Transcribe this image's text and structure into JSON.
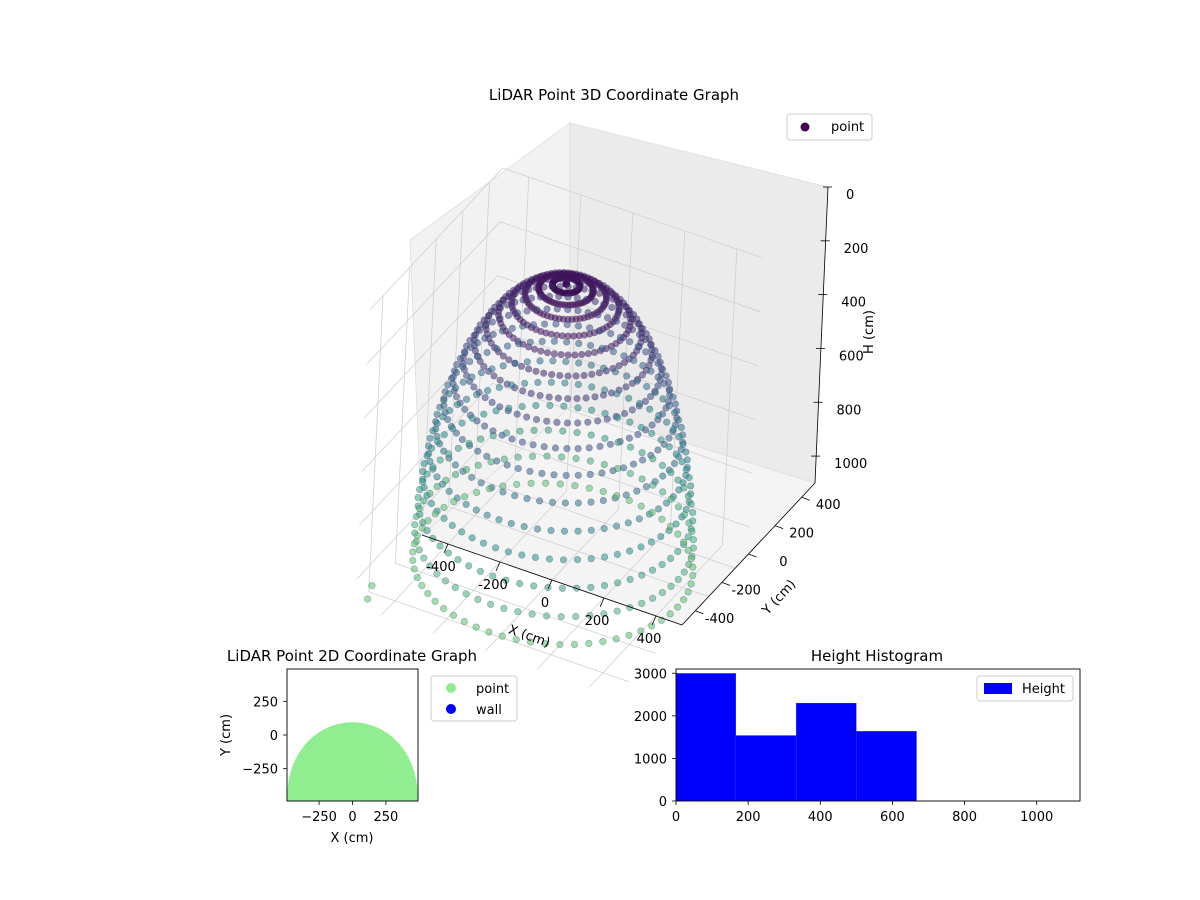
{
  "chart_data": [
    {
      "type": "scatter",
      "projection": "3d",
      "title": "LiDAR Point 3D Coordinate Graph",
      "xlabel": "X (cm)",
      "ylabel": "Y (cm)",
      "zlabel": "H (cm)",
      "xticks": [
        -400,
        -200,
        0,
        200,
        400
      ],
      "yticks": [
        -400,
        -200,
        0,
        200,
        400
      ],
      "zticks": [
        0,
        200,
        400,
        600,
        800,
        1000
      ],
      "xlim": [
        -500,
        500
      ],
      "ylim": [
        -500,
        500
      ],
      "zlim": [
        0,
        1100
      ],
      "z_inverted": true,
      "legend": [
        "point"
      ],
      "legend_position": "top-right",
      "colormap": "viridis",
      "series": [
        {
          "name": "point",
          "shape": "dome",
          "dome_radius": 480,
          "dome_height_range": [
            0,
            1040
          ],
          "height_band": [
            560,
            700
          ],
          "stray_points": [
            {
              "x": -480,
              "y": -420,
              "h": 1060
            },
            {
              "x": -470,
              "y": -470,
              "h": 1080
            }
          ]
        }
      ]
    },
    {
      "type": "scatter",
      "title": "LiDAR Point 2D Coordinate Graph",
      "xlabel": "X (cm)",
      "ylabel": "Y (cm)",
      "xticks": [
        -250,
        0,
        250
      ],
      "yticks": [
        -250,
        0,
        250
      ],
      "xlim": [
        -490,
        490
      ],
      "ylim": [
        -490,
        490
      ],
      "legend": [
        "point",
        "wall"
      ],
      "legend_position": "outside-right",
      "series": [
        {
          "name": "point",
          "color": "#90ee90",
          "region": "semicircle",
          "radius": 490,
          "top_y": 95
        },
        {
          "name": "wall",
          "color": "#0000ff"
        }
      ]
    },
    {
      "type": "bar",
      "subtype": "histogram",
      "title": "Height Histogram",
      "xticks": [
        0,
        200,
        400,
        600,
        800,
        1000
      ],
      "yticks": [
        0,
        1000,
        2000,
        3000
      ],
      "xlim": [
        0,
        1120
      ],
      "ylim": [
        0,
        3100
      ],
      "legend": [
        "Height"
      ],
      "legend_position": "top-right",
      "color": "#0000ff",
      "bin_edges": [
        0,
        166,
        333,
        500,
        667
      ],
      "values": [
        3000,
        1540,
        2300,
        1640
      ]
    }
  ]
}
